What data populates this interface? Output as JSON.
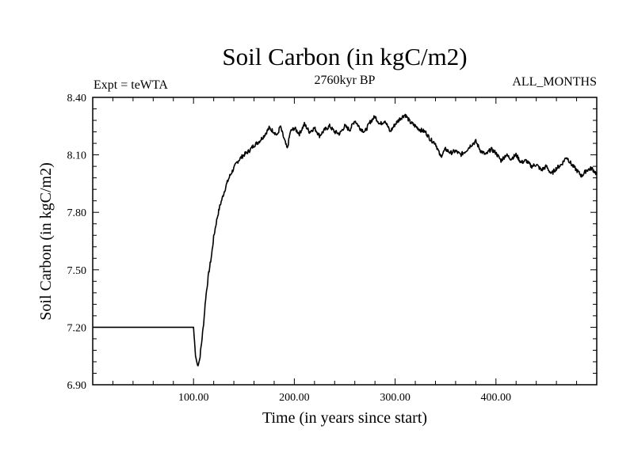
{
  "chart_data": {
    "type": "line",
    "title": "Soil Carbon (in kgC/m2)",
    "left_label": "Expt = teWTA",
    "center_label": "2760kyr BP",
    "right_label": "ALL_MONTHS",
    "xlabel": "Time (in years since start)",
    "ylabel": "Soil Carbon (in kgC/m2)",
    "xlim": [
      0,
      500
    ],
    "ylim": [
      6.9,
      8.4
    ],
    "x_ticks": [
      100,
      200,
      300,
      400
    ],
    "x_tick_labels": [
      "100.00",
      "200.00",
      "300.00",
      "400.00"
    ],
    "y_ticks": [
      6.9,
      7.2,
      7.5,
      7.8,
      8.1,
      8.4
    ],
    "y_tick_labels": [
      "6.90",
      "7.20",
      "7.50",
      "7.80",
      "8.10",
      "8.40"
    ],
    "grid": false,
    "series": [
      {
        "name": "Soil Carbon",
        "x": [
          0,
          100,
          102,
          104,
          106,
          108,
          110,
          112,
          115,
          118,
          120,
          123,
          126,
          130,
          133,
          136,
          140,
          143,
          146,
          150,
          155,
          160,
          165,
          170,
          175,
          180,
          183,
          186,
          190,
          193,
          196,
          200,
          205,
          210,
          215,
          220,
          225,
          230,
          235,
          240,
          245,
          250,
          255,
          260,
          265,
          270,
          275,
          280,
          285,
          290,
          295,
          300,
          305,
          310,
          315,
          320,
          325,
          330,
          335,
          340,
          345,
          350,
          355,
          360,
          365,
          370,
          375,
          380,
          385,
          390,
          395,
          400,
          405,
          410,
          415,
          420,
          425,
          430,
          435,
          440,
          445,
          450,
          455,
          460,
          465,
          470,
          475,
          480,
          485,
          490,
          495,
          500
        ],
        "y": [
          7.2,
          7.2,
          7.05,
          7.0,
          7.03,
          7.12,
          7.22,
          7.35,
          7.48,
          7.58,
          7.67,
          7.76,
          7.83,
          7.9,
          7.95,
          7.99,
          8.03,
          8.06,
          8.08,
          8.1,
          8.12,
          8.15,
          8.17,
          8.2,
          8.24,
          8.22,
          8.2,
          8.25,
          8.18,
          8.13,
          8.22,
          8.24,
          8.21,
          8.26,
          8.22,
          8.24,
          8.2,
          8.23,
          8.25,
          8.22,
          8.21,
          8.25,
          8.23,
          8.28,
          8.24,
          8.22,
          8.27,
          8.3,
          8.26,
          8.28,
          8.22,
          8.26,
          8.29,
          8.31,
          8.27,
          8.25,
          8.23,
          8.22,
          8.18,
          8.16,
          8.09,
          8.13,
          8.11,
          8.12,
          8.1,
          8.12,
          8.15,
          8.17,
          8.12,
          8.1,
          8.13,
          8.11,
          8.07,
          8.1,
          8.08,
          8.1,
          8.06,
          8.07,
          8.04,
          8.05,
          8.02,
          8.04,
          8.0,
          8.03,
          8.05,
          8.09,
          8.05,
          8.02,
          7.99,
          8.02,
          8.03,
          8.0
        ]
      }
    ]
  }
}
